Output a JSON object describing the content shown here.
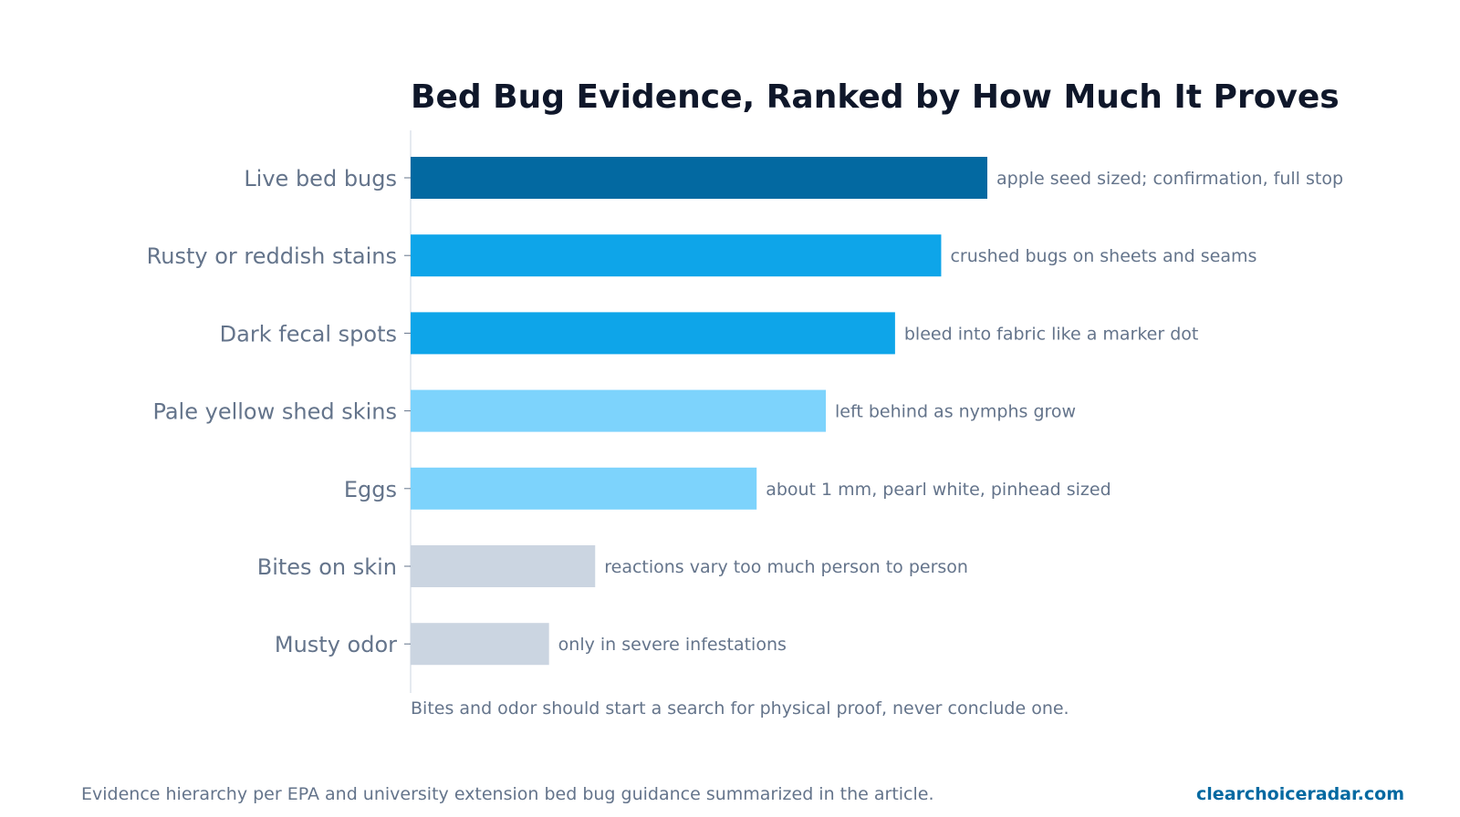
{
  "chart_data": {
    "type": "bar",
    "orientation": "horizontal",
    "title": "Bed Bug Evidence, Ranked by How Much It Proves",
    "xlabel": "",
    "ylabel": "",
    "xlim": [
      0,
      100
    ],
    "grid": false,
    "legend": "none",
    "categories": [
      "Live bed bugs",
      "Rusty or reddish stains",
      "Dark fecal spots",
      "Pale yellow shed skins",
      "Eggs",
      "Bites on skin",
      "Musty odor"
    ],
    "values": [
      100,
      92,
      84,
      72,
      60,
      32,
      24
    ],
    "annotations": [
      "apple seed sized; confirmation, full stop",
      "crushed bugs on sheets and seams",
      "bleed into fabric like a marker dot",
      "left behind as nymphs grow",
      "about 1 mm, pearl white, pinhead sized",
      "reactions vary too much person to person",
      "only in severe infestations"
    ],
    "colors": [
      "#0369a1",
      "#0ea5e9",
      "#0ea5e9",
      "#7dd3fc",
      "#7dd3fc",
      "#cbd5e1",
      "#cbd5e1"
    ],
    "note": "Bites and odor should start a search for physical proof, never conclude one."
  },
  "footer": {
    "source": "Evidence hierarchy per EPA and university extension bed bug guidance summarized in the article.",
    "brand": "clearchoiceradar.com"
  },
  "colors": {
    "title": "#0f172a",
    "label": "#64748b",
    "brand": "#0369a1",
    "axis": "#cbd5e1"
  }
}
